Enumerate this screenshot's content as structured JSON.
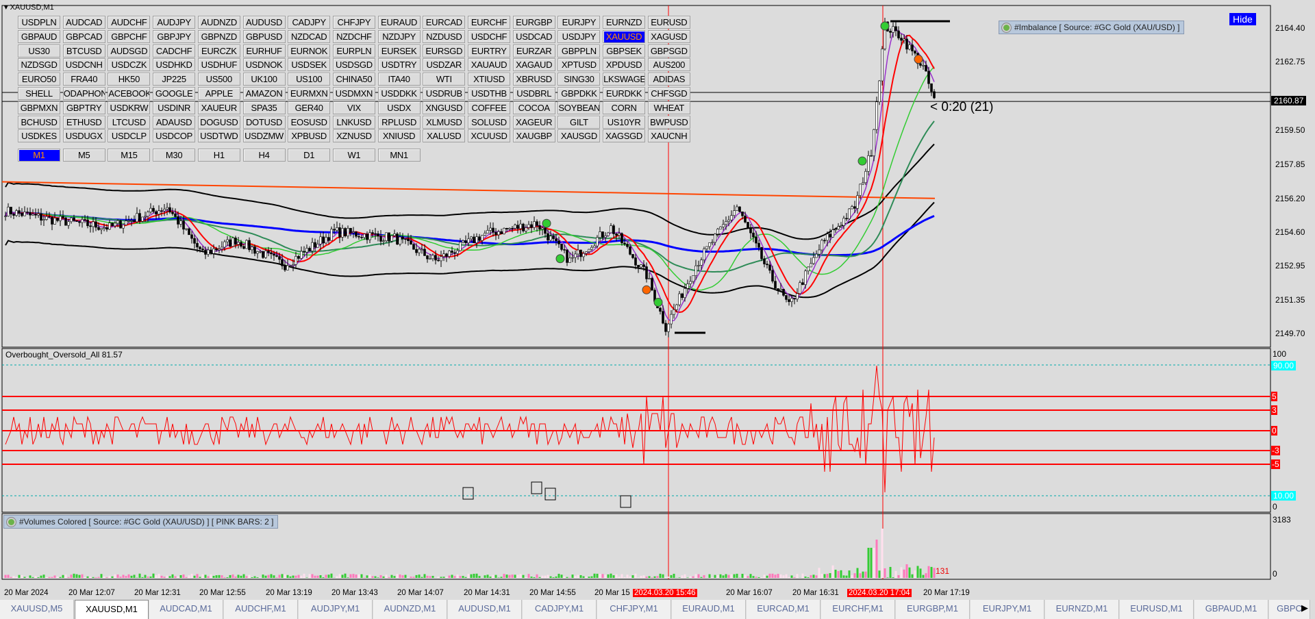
{
  "window": {
    "symbol_title": "XAUUSD,M1"
  },
  "symbol_grid": [
    [
      "USDPLN",
      "AUDCAD",
      "AUDCHF",
      "AUDJPY",
      "AUDNZD",
      "AUDUSD",
      "CADJPY",
      "CHFJPY",
      "EURAUD",
      "EURCAD",
      "EURCHF",
      "EURGBP",
      "EURJPY",
      "EURNZD",
      "EURUSD"
    ],
    [
      "GBPAUD",
      "GBPCAD",
      "GBPCHF",
      "GBPJPY",
      "GBPNZD",
      "GBPUSD",
      "NZDCAD",
      "NZDCHF",
      "NZDJPY",
      "NZDUSD",
      "USDCHF",
      "USDCAD",
      "USDJPY",
      "XAUUSD",
      "XAGUSD"
    ],
    [
      "US30",
      "BTCUSD",
      "AUDSGD",
      "CADCHF",
      "EURCZK",
      "EURHUF",
      "EURNOK",
      "EURPLN",
      "EURSEK",
      "EURSGD",
      "EURTRY",
      "EURZAR",
      "GBPPLN",
      "GBPSEK",
      "GBPSGD"
    ],
    [
      "NZDSGD",
      "USDCNH",
      "USDCZK",
      "USDHKD",
      "USDHUF",
      "USDNOK",
      "USDSEK",
      "USDSGD",
      "USDTRY",
      "USDZAR",
      "XAUAUD",
      "XAGAUD",
      "XPTUSD",
      "XPDUSD",
      "AUS200"
    ],
    [
      "EURO50",
      "FRA40",
      "HK50",
      "JP225",
      "US500",
      "UK100",
      "US100",
      "CHINA50",
      "ITA40",
      "WTI",
      "XTIUSD",
      "XBRUSD",
      "SING30",
      "LKSWAGE",
      "ADIDAS"
    ],
    [
      "SHELL",
      "ODAPHON",
      "ACEBOOK",
      "GOOGLE",
      "APPLE",
      "AMAZON",
      "EURMXN",
      "USDMXN",
      "USDDKK",
      "USDRUB",
      "USDTHB",
      "USDBRL",
      "GBPDKK",
      "EURDKK",
      "CHFSGD"
    ],
    [
      "GBPMXN",
      "GBPTRY",
      "USDKRW",
      "USDINR",
      "XAUEUR",
      "SPA35",
      "GER40",
      "VIX",
      "USDX",
      "XNGUSD",
      "COFFEE",
      "COCOA",
      "SOYBEANS",
      "CORN",
      "WHEAT"
    ],
    [
      "BCHUSD",
      "ETHUSD",
      "LTCUSD",
      "ADAUSD",
      "DOGUSD",
      "DOTUSD",
      "EOSUSD",
      "LNKUSD",
      "RPLUSD",
      "XLMUSD",
      "SOLUSD",
      "XAGEUR",
      "GILT",
      "US10YR",
      "BWPUSD"
    ],
    [
      "USDKES",
      "USDUGX",
      "USDCLP",
      "USDCOP",
      "USDTWD",
      "USDZMW",
      "XPBUSD",
      "XZNUSD",
      "XNIUSD",
      "XALUSD",
      "XCUUSD",
      "XAUGBP",
      "XAUSGD",
      "XAGSGD",
      "XAUCNH"
    ]
  ],
  "active_symbol": "XAUUSD",
  "timeframes": [
    "M1",
    "M5",
    "M15",
    "M30",
    "H1",
    "H4",
    "D1",
    "W1",
    "MN1"
  ],
  "active_timeframe": "M1",
  "hide_button": "Hide",
  "imbalance_legend": "#Imbalance [ Source: #GC Gold (XAU/USD) ]",
  "countdown": "< 0:20 (21)",
  "price_axis": [
    "2164.40",
    "2162.75",
    "2160.87",
    "2159.50",
    "2157.85",
    "2156.20",
    "2154.60",
    "2152.95",
    "2151.35",
    "2149.70"
  ],
  "current_price": "2160.87",
  "price_waypoints": [
    [
      "11:44",
      2155.6
    ],
    [
      "12:00",
      2155.2
    ],
    [
      "12:22",
      2154.8
    ],
    [
      "12:43",
      2155.8
    ],
    [
      "12:56",
      2153.5
    ],
    [
      "13:08",
      2154.2
    ],
    [
      "13:26",
      2153.0
    ],
    [
      "13:44",
      2154.6
    ],
    [
      "14:06",
      2154.3
    ],
    [
      "14:21",
      2153.2
    ],
    [
      "14:39",
      2154.5
    ],
    [
      "14:58",
      2155.0
    ],
    [
      "15:10",
      2153.2
    ],
    [
      "15:25",
      2154.8
    ],
    [
      "15:38",
      2152.5
    ],
    [
      "15:45",
      2150.0
    ],
    [
      "15:56",
      2153.0
    ],
    [
      "16:11",
      2155.8
    ],
    [
      "16:23",
      2152.5
    ],
    [
      "16:30",
      2151.0
    ],
    [
      "16:42",
      2154.0
    ],
    [
      "16:54",
      2155.8
    ],
    [
      "17:00",
      2158.5
    ],
    [
      "17:05",
      2164.5
    ],
    [
      "17:11",
      2164.0
    ],
    [
      "17:19",
      2162.5
    ],
    [
      "17:23",
      2160.9
    ]
  ],
  "oscillator": {
    "title": "Overbought_Oversold_All 81.57",
    "axis_top": "100",
    "axis_bottom": "0",
    "upper": "90.00",
    "lower": "10.00",
    "levels": [
      "5",
      "3",
      "0",
      "-3",
      "-5"
    ]
  },
  "volumes": {
    "legend": "#Volumes Colored [ Source: #GC Gold (XAU/USD) ]  [ PINK BARS: 2 ]",
    "max": "3183",
    "min": "0",
    "last": "131"
  },
  "time_axis": [
    "20 Mar 2024",
    "20 Mar 12:07",
    "20 Mar 12:31",
    "20 Mar 12:55",
    "20 Mar 13:19",
    "20 Mar 13:43",
    "20 Mar 14:07",
    "20 Mar 14:31",
    "20 Mar 14:55",
    "20 Mar 15",
    "2024.03.20 15:46",
    "20 Mar 16:07",
    "20 Mar 16:31",
    "2024.03.20 17:04",
    "20 Mar 17:19"
  ],
  "tabs": [
    "XAUUSD,M5",
    "XAUUSD,M1",
    "AUDCAD,M1",
    "AUDCHF,M1",
    "AUDJPY,M1",
    "AUDNZD,M1",
    "AUDUSD,M1",
    "CADJPY,M1",
    "CHFJPY,M1",
    "EURAUD,M1",
    "EURCAD,M1",
    "EURCHF,M1",
    "EURGBP,M1",
    "EURJPY,M1",
    "EURNZD,M1",
    "EURUSD,M1",
    "GBPAUD,M1",
    "GBPC"
  ],
  "active_tab": "XAUUSD,M1",
  "colors": {
    "bg": "#dcdcdc",
    "accent": "#0000ff",
    "highlight": "#ff0000",
    "bull_volume": "#33cc33",
    "bear_volume": "#ff77bb"
  }
}
